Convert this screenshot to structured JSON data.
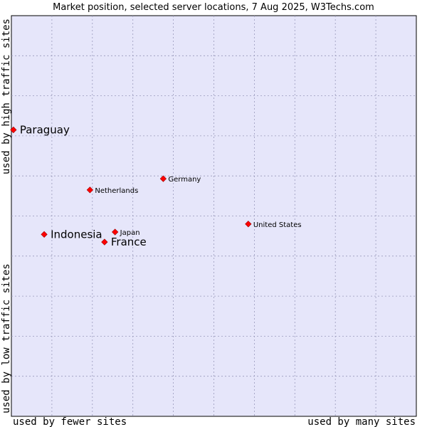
{
  "chart_data": {
    "type": "scatter",
    "title": "Market position, selected server locations, 7 Aug 2025, W3Techs.com",
    "xlabel_left": "used by fewer sites",
    "xlabel_right": "used by many sites",
    "ylabel_top": "used by high traffic sites",
    "ylabel_bottom": "used by low traffic sites",
    "xlim": [
      0,
      100
    ],
    "ylim": [
      0,
      100
    ],
    "grid": true,
    "colors": {
      "plot_background": "#e6e6fa",
      "grid": "#9999bb",
      "marker": "#ff0000",
      "marker_edge": "#990000"
    },
    "points": [
      {
        "name": "Paraguay",
        "x": 0.5,
        "y": 71.5,
        "emphasis": true
      },
      {
        "name": "Germany",
        "x": 37.5,
        "y": 59.3,
        "emphasis": false
      },
      {
        "name": "Netherlands",
        "x": 19.4,
        "y": 56.5,
        "emphasis": false
      },
      {
        "name": "United States",
        "x": 58.5,
        "y": 48.0,
        "emphasis": false
      },
      {
        "name": "Japan",
        "x": 25.6,
        "y": 46.0,
        "emphasis": false
      },
      {
        "name": "Indonesia",
        "x": 8.1,
        "y": 45.4,
        "emphasis": true
      },
      {
        "name": "France",
        "x": 23.0,
        "y": 43.5,
        "emphasis": true
      }
    ]
  }
}
